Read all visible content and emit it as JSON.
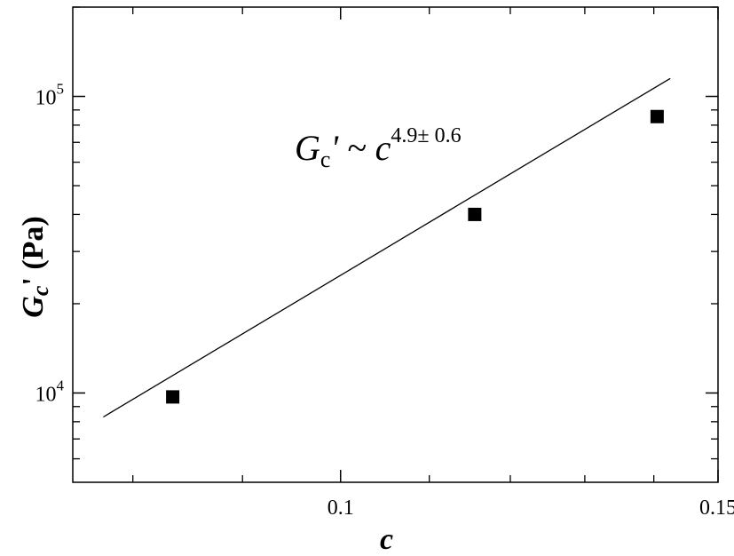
{
  "chart_data": {
    "type": "scatter",
    "x_scale": "log",
    "y_scale": "log",
    "xlim": [
      0.075,
      0.15
    ],
    "ylim": [
      5000,
      200000
    ],
    "x_ticks": [
      {
        "value": 0.1,
        "label": "0.1"
      },
      {
        "value": 0.15,
        "label": "0.15"
      }
    ],
    "y_major_ticks": [
      {
        "value": 10000,
        "base": "10",
        "exp": "4"
      },
      {
        "value": 100000,
        "base": "10",
        "exp": "5"
      }
    ],
    "y_minor_ticks": [
      6000,
      7000,
      8000,
      9000,
      20000,
      30000,
      40000,
      50000,
      60000,
      70000,
      80000,
      90000,
      200000
    ],
    "x_minor_ticks": [
      0.08,
      0.09,
      0.11,
      0.12,
      0.13,
      0.14
    ],
    "xlabel": "c",
    "ylabel": {
      "main": "G",
      "sub": "c",
      "tail": "' (Pa)"
    },
    "grid": false,
    "points": [
      {
        "x": 0.0835,
        "y": 9700
      },
      {
        "x": 0.1155,
        "y": 40000
      },
      {
        "x": 0.1405,
        "y": 85500
      }
    ],
    "fit_line": {
      "x": [
        0.0775,
        0.1425
      ],
      "y": [
        8300,
        115000
      ]
    },
    "annotation": {
      "main": "G",
      "sub": "c",
      "mid": "' ~ c",
      "sup": "4.9± 0.6"
    },
    "colors": {
      "marker": "#000000",
      "line": "#000000",
      "axis": "#000000"
    }
  }
}
